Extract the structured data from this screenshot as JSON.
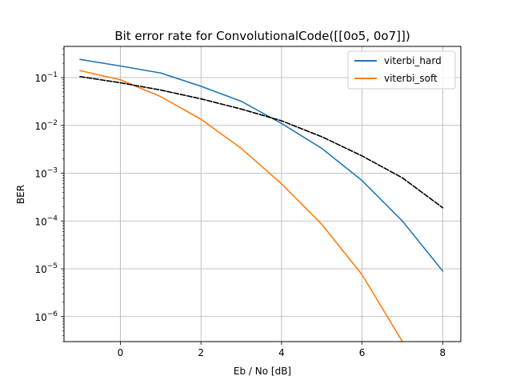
{
  "chart_data": {
    "type": "line",
    "title": "Bit error rate for ConvolutionalCode([[0o5, 0o7]])",
    "xlabel": "Eb / No [dB]",
    "ylabel": "BER",
    "xlim": [
      -1.4,
      8.45
    ],
    "ylim": [
      3e-07,
      0.45
    ],
    "yscale": "log",
    "grid": true,
    "legend_position": "top-right",
    "x_ticks": [
      0,
      2,
      4,
      6,
      8
    ],
    "x_tick_labels": [
      "0",
      "2",
      "4",
      "6",
      "8"
    ],
    "y_ticks": [
      0.1,
      0.01,
      0.001,
      0.0001,
      1e-05,
      1e-06
    ],
    "y_tick_labels": [
      {
        "base": "10",
        "exp": "−1"
      },
      {
        "base": "10",
        "exp": "−2"
      },
      {
        "base": "10",
        "exp": "−3"
      },
      {
        "base": "10",
        "exp": "−4"
      },
      {
        "base": "10",
        "exp": "−5"
      },
      {
        "base": "10",
        "exp": "−6"
      }
    ],
    "series": [
      {
        "name": "viterbi_hard",
        "color": "#1f77b4",
        "dash": "solid",
        "x": [
          -1,
          0,
          1,
          2,
          3,
          4,
          5,
          6,
          7,
          8
        ],
        "y": [
          0.24,
          0.175,
          0.125,
          0.066,
          0.032,
          0.011,
          0.0033,
          0.0007,
          0.0001,
          9e-06
        ]
      },
      {
        "name": "viterbi_soft",
        "color": "#ff7f0e",
        "dash": "solid",
        "x": [
          -1,
          0,
          1,
          2,
          3,
          4,
          5,
          6,
          7
        ],
        "y": [
          0.14,
          0.09,
          0.04,
          0.0135,
          0.0033,
          0.0006,
          8.5e-05,
          7.5e-06,
          3e-07
        ]
      },
      {
        "color": "#000000",
        "dash": "dashed",
        "x": [
          -1,
          0,
          1,
          2,
          3,
          4,
          5,
          6,
          7,
          8
        ],
        "y": [
          0.105,
          0.078,
          0.055,
          0.036,
          0.022,
          0.0125,
          0.0058,
          0.0023,
          0.0008,
          0.00019
        ]
      }
    ]
  }
}
